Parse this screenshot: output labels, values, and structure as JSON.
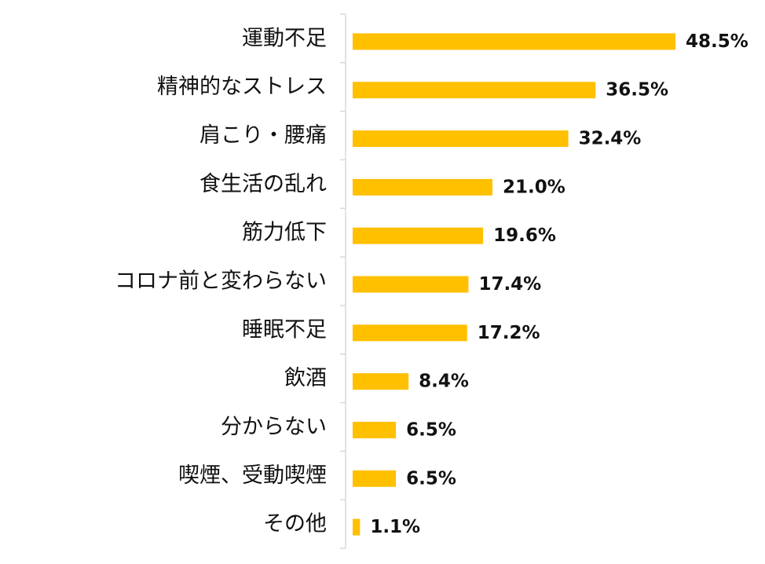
{
  "chart_data": {
    "type": "bar",
    "orientation": "horizontal",
    "categories": [
      "運動不足",
      "精神的なストレス",
      "肩こり・腰痛",
      "食生活の乱れ",
      "筋力低下",
      "コロナ前と変わらない",
      "睡眠不足",
      "飲酒",
      "分からない",
      "喫煙、受動喫煙",
      "その他"
    ],
    "values": [
      48.5,
      36.5,
      32.4,
      21.0,
      19.6,
      17.4,
      17.2,
      8.4,
      6.5,
      6.5,
      1.1
    ],
    "value_labels": [
      "48.5%",
      "36.5%",
      "32.4%",
      "21.0%",
      "19.6%",
      "17.4%",
      "17.2%",
      "8.4%",
      "6.5%",
      "6.5%",
      "1.1%"
    ],
    "title": "",
    "xlabel": "",
    "ylabel": "",
    "xlim": [
      0,
      48.5
    ],
    "grid": false,
    "legend": "none",
    "bar_color": "#FFC000",
    "axis_color": "#D9D9D9"
  }
}
